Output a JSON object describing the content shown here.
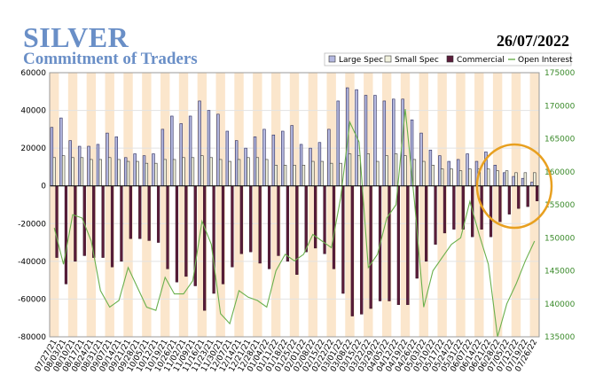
{
  "header": {
    "title": "SILVER",
    "subtitle": "Commitment of Traders",
    "date": "26/07/2022"
  },
  "chart_data": {
    "type": "bar",
    "legend": [
      "Large Spec",
      "Small Spec",
      "Commercial",
      "Open Interest"
    ],
    "legend_position": "top-right",
    "colors": {
      "large_spec": "#b4b8e0",
      "small_spec": "#f2f2de",
      "commercial": "#5a1c3a",
      "open_interest": "#6ab04c",
      "band": "#fbe6cc",
      "highlight_circle": "#e8a020"
    },
    "ylim": [
      -80000,
      60000
    ],
    "yticks": [
      60000,
      40000,
      20000,
      0,
      -20000,
      -40000,
      -60000,
      -80000
    ],
    "y2lim": [
      135000,
      175000
    ],
    "y2ticks": [
      175000,
      170000,
      165000,
      160000,
      155000,
      150000,
      145000,
      140000,
      135000
    ],
    "x_labels": [
      "07/27/21",
      "08/03/21",
      "08/10/21",
      "08/17/21",
      "08/24/21",
      "08/31/21",
      "09/07/21",
      "09/14/21",
      "09/21/21",
      "09/28/21",
      "10/05/21",
      "10/12/21",
      "10/19/21",
      "10/26/21",
      "11/02/21",
      "11/09/21",
      "11/16/21",
      "11/23/21",
      "11/30/21",
      "12/07/21",
      "12/14/21",
      "12/21/21",
      "12/28/21",
      "01/04/22",
      "01/11/22",
      "01/18/22",
      "01/25/22",
      "02/01/22",
      "02/08/22",
      "02/15/22",
      "02/22/22",
      "03/01/22",
      "03/08/22",
      "03/15/22",
      "03/22/22",
      "03/29/22",
      "04/05/22",
      "04/12/22",
      "04/19/22",
      "04/26/22",
      "05/03/22",
      "05/10/22",
      "05/17/22",
      "05/24/22",
      "05/31/22",
      "06/07/22",
      "06/14/22",
      "06/21/22",
      "06/28/22",
      "07/05/22",
      "07/12/22",
      "07/19/22",
      "07/26/22"
    ],
    "series": [
      {
        "name": "Large Spec",
        "values": [
          31000,
          36000,
          24000,
          21000,
          21000,
          22000,
          28000,
          26000,
          15000,
          17000,
          16000,
          17000,
          30000,
          37000,
          33000,
          37000,
          45000,
          40000,
          38000,
          29000,
          24000,
          20000,
          26000,
          30000,
          27000,
          29000,
          32000,
          22000,
          20000,
          23000,
          30000,
          45000,
          52000,
          51000,
          48000,
          48000,
          45000,
          46000,
          46000,
          35000,
          28000,
          19000,
          16000,
          13000,
          14000,
          17000,
          13000,
          18000,
          11000,
          7000,
          5000,
          4000,
          2000
        ]
      },
      {
        "name": "Small Spec",
        "values": [
          15000,
          16000,
          15000,
          15000,
          14000,
          14000,
          15000,
          14000,
          13000,
          13000,
          12000,
          12000,
          14000,
          14000,
          15000,
          15000,
          16000,
          15000,
          14000,
          13000,
          14000,
          15000,
          15000,
          14000,
          11000,
          11000,
          11000,
          11000,
          13000,
          13000,
          12000,
          12000,
          17000,
          16000,
          17000,
          13000,
          16000,
          17000,
          16000,
          14000,
          13000,
          11000,
          9000,
          9000,
          8000,
          9000,
          9000,
          9000,
          8000,
          8000,
          7000,
          7000,
          7000
        ]
      },
      {
        "name": "Commercial",
        "values": [
          -38000,
          -52000,
          -40000,
          -37000,
          -38000,
          -38000,
          -43000,
          -40000,
          -28000,
          -28000,
          -29000,
          -30000,
          -44000,
          -51000,
          -48000,
          -53000,
          -66000,
          -57000,
          -52000,
          -43000,
          -36000,
          -35000,
          -41000,
          -44000,
          -37000,
          -40000,
          -47000,
          -35000,
          -33000,
          -36000,
          -44000,
          -57000,
          -69000,
          -68000,
          -65000,
          -61000,
          -61000,
          -63000,
          -63000,
          -49000,
          -40000,
          -31000,
          -25000,
          -23000,
          -23000,
          -27000,
          -23000,
          -27000,
          -19000,
          -15000,
          -12000,
          -11000,
          -8000
        ]
      },
      {
        "name": "Open Interest",
        "values": [
          151500,
          146000,
          153500,
          153000,
          149500,
          142000,
          139500,
          140500,
          145500,
          142500,
          139500,
          139000,
          144000,
          141500,
          141500,
          143500,
          152500,
          149000,
          138500,
          137000,
          142000,
          141000,
          140500,
          139500,
          145000,
          147500,
          146500,
          147500,
          150500,
          149500,
          148500,
          156000,
          167500,
          164500,
          145500,
          147500,
          153000,
          155000,
          169500,
          155500,
          139500,
          145000,
          147000,
          149000,
          150000,
          155500,
          150500,
          146000,
          135000,
          140000,
          143000,
          146500,
          149500
        ]
      }
    ]
  }
}
